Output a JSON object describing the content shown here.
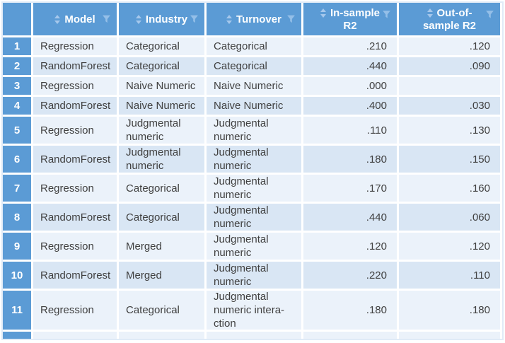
{
  "table": {
    "columns": [
      {
        "id": "model",
        "label": "Model",
        "line2": ""
      },
      {
        "id": "industry",
        "label": "Industry",
        "line2": ""
      },
      {
        "id": "turnover",
        "label": "Turnover",
        "line2": ""
      },
      {
        "id": "in_sample",
        "label": "In-sample",
        "line2": "R2"
      },
      {
        "id": "out_sample",
        "label": "Out-of-",
        "line2": "sample R2"
      }
    ],
    "rows": [
      {
        "num": "1",
        "model": "Regression",
        "industry": "Categorical",
        "turnover": "Categorical",
        "in_sample": ".210",
        "out_sample": ".120"
      },
      {
        "num": "2",
        "model": "RandomForest",
        "industry": "Categorical",
        "turnover": "Categorical",
        "in_sample": ".440",
        "out_sample": ".090"
      },
      {
        "num": "3",
        "model": "Regression",
        "industry": "Naive Numeric",
        "turnover": "Naive Numeric",
        "in_sample": ".000",
        "out_sample": ""
      },
      {
        "num": "4",
        "model": "RandomForest",
        "industry": "Naive Numeric",
        "turnover": "Naive Numeric",
        "in_sample": ".400",
        "out_sample": ".030"
      },
      {
        "num": "5",
        "model": "Regression",
        "industry": "Judgmental numeric",
        "turnover": "Judgmental numeric",
        "in_sample": ".110",
        "out_sample": ".130"
      },
      {
        "num": "6",
        "model": "RandomForest",
        "industry": "Judgmental numeric",
        "turnover": "Judgmental numeric",
        "in_sample": ".180",
        "out_sample": ".150"
      },
      {
        "num": "7",
        "model": "Regression",
        "industry": "Categorical",
        "turnover": "Judgmental numeric",
        "in_sample": ".170",
        "out_sample": ".160"
      },
      {
        "num": "8",
        "model": "RandomForest",
        "industry": "Categorical",
        "turnover": "Judgmental numeric",
        "in_sample": ".440",
        "out_sample": ".060"
      },
      {
        "num": "9",
        "model": "Regression",
        "industry": "Merged",
        "turnover": "Judgmental numeric",
        "in_sample": ".120",
        "out_sample": ".120"
      },
      {
        "num": "10",
        "model": "RandomForest",
        "industry": "Merged",
        "turnover": "Judgmental numeric",
        "in_sample": ".220",
        "out_sample": ".110"
      },
      {
        "num": "11",
        "model": "Regression",
        "industry": "Categorical",
        "turnover": "Judgmental numeric intera-ction",
        "in_sample": ".180",
        "out_sample": ".180"
      }
    ]
  },
  "icons": {
    "sort": "sort-arrows-icon",
    "filter": "filter-funnel-icon"
  },
  "colors": {
    "header_blue": "#5b9bd5",
    "row_light": "#ebf2fa",
    "row_dark": "#d9e6f4",
    "sort_icon": "#a6c8ec",
    "funnel_icon": "#94bfe8",
    "body_text": "#404040",
    "outer_border": "#e0ebf7",
    "gridline": "#ffffff"
  }
}
